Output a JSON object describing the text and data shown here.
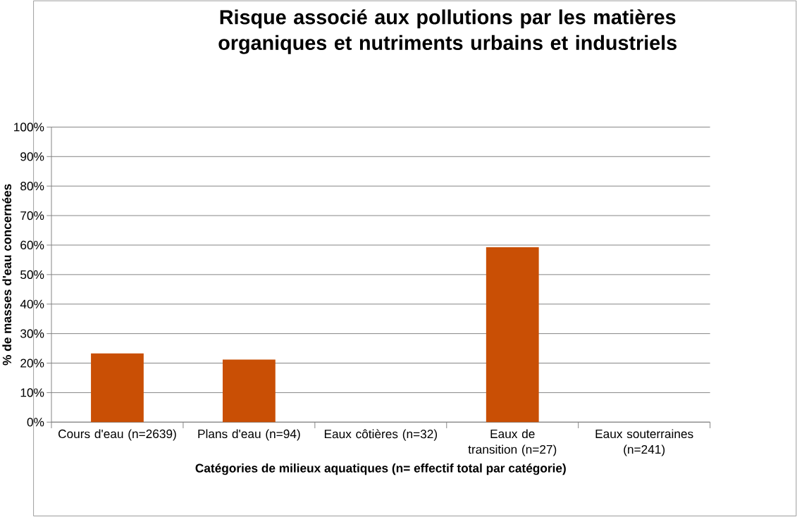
{
  "chart_data": {
    "type": "bar",
    "title": "Risque associé aux pollutions par les matières organiques et nutriments urbains et industriels",
    "xlabel": "Catégories de milieux aquatiques  (n= effectif total par catégorie)",
    "ylabel": "% de masses d'eau concernées",
    "categories": [
      "Cours d'eau (n=2639)",
      "Plans d'eau (n=94)",
      "Eaux côtières (n=32)",
      "Eaux de transition (n=27)",
      "Eaux souterraines (n=241)"
    ],
    "values": [
      23.3,
      21.2,
      0,
      59.3,
      0
    ],
    "color": "#c94f05",
    "ylim": [
      0,
      100
    ],
    "yticks": [
      {
        "value": 0,
        "label": "0%"
      },
      {
        "value": 10,
        "label": "10%"
      },
      {
        "value": 20,
        "label": "20%"
      },
      {
        "value": 30,
        "label": "30%"
      },
      {
        "value": 40,
        "label": "40%"
      },
      {
        "value": 50,
        "label": "50%"
      },
      {
        "value": 60,
        "label": "60%"
      },
      {
        "value": 70,
        "label": "70%"
      },
      {
        "value": 80,
        "label": "80%"
      },
      {
        "value": 90,
        "label": "90%"
      },
      {
        "value": 100,
        "label": "100%"
      }
    ],
    "grid": "y"
  }
}
